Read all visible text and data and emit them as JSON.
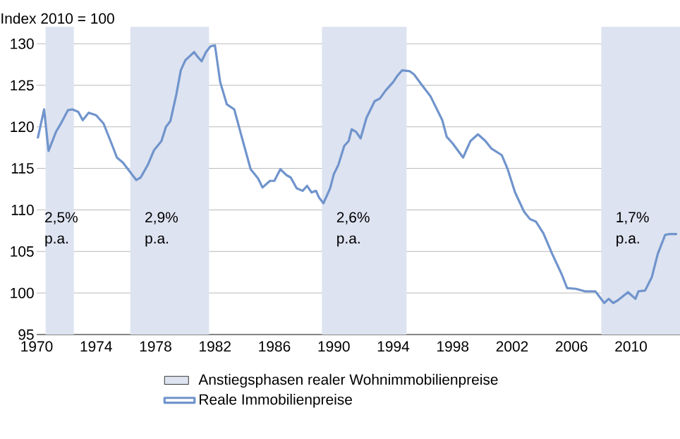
{
  "chart_data": {
    "type": "line",
    "ylabel": "Index 2010 = 100",
    "x": [
      1970.07,
      1970.5,
      1970.8,
      1971.3,
      1971.6,
      1972.1,
      1972.4,
      1972.8,
      1973.1,
      1973.5,
      1974.0,
      1974.5,
      1975.1,
      1975.4,
      1975.8,
      1976.4,
      1976.7,
      1977.0,
      1977.5,
      1977.9,
      1978.4,
      1978.7,
      1979.0,
      1979.4,
      1979.7,
      1980.0,
      1980.3,
      1980.6,
      1980.8,
      1981.1,
      1981.4,
      1981.7,
      1982.0,
      1982.35,
      1982.8,
      1983.3,
      1983.8,
      1984.4,
      1984.9,
      1985.2,
      1985.7,
      1986.0,
      1986.4,
      1986.8,
      1987.1,
      1987.5,
      1987.9,
      1988.2,
      1988.5,
      1988.8,
      1989.0,
      1989.3,
      1989.75,
      1990.0,
      1990.3,
      1990.7,
      1991.0,
      1991.2,
      1991.5,
      1991.8,
      1992.2,
      1992.75,
      1993.1,
      1993.5,
      1994.0,
      1994.3,
      1994.6,
      1995.1,
      1995.4,
      1995.9,
      1996.5,
      1997.3,
      1997.6,
      1998.0,
      1998.7,
      1999.2,
      1999.7,
      2000.2,
      2000.6,
      2001.3,
      2001.7,
      2002.2,
      2002.8,
      2003.2,
      2003.6,
      2004.1,
      2004.7,
      2005.35,
      2005.7,
      2006.3,
      2006.9,
      2007.6,
      2008.2,
      2008.5,
      2008.8,
      2009.1,
      2009.8,
      2010.3,
      2010.5,
      2010.95,
      2011.4,
      2011.8,
      2012.3,
      2012.6,
      2013.1
    ],
    "series": [
      {
        "name": "Reale Immobilienpreise",
        "color": "#7094cc",
        "values": [
          118.6,
          122.1,
          117.1,
          119.4,
          120.3,
          122.0,
          122.1,
          121.8,
          120.8,
          121.7,
          121.4,
          120.4,
          117.7,
          116.3,
          115.7,
          114.3,
          113.6,
          113.9,
          115.5,
          117.2,
          118.3,
          120.0,
          120.7,
          123.9,
          126.8,
          128.0,
          128.5,
          129.0,
          128.5,
          127.9,
          129.0,
          129.7,
          129.8,
          125.4,
          122.7,
          122.1,
          118.8,
          114.9,
          113.8,
          112.7,
          113.5,
          113.5,
          114.9,
          114.2,
          113.9,
          112.6,
          112.3,
          112.9,
          112.1,
          112.3,
          111.5,
          110.8,
          112.6,
          114.3,
          115.4,
          117.7,
          118.3,
          119.7,
          119.4,
          118.6,
          121.1,
          123.1,
          123.4,
          124.4,
          125.4,
          126.2,
          126.8,
          126.7,
          126.3,
          125.1,
          123.7,
          120.8,
          118.8,
          118.0,
          116.3,
          118.3,
          119.1,
          118.3,
          117.4,
          116.6,
          114.9,
          112.1,
          109.8,
          108.9,
          108.6,
          107.2,
          104.7,
          102.2,
          100.6,
          100.5,
          100.2,
          100.2,
          98.8,
          99.3,
          98.8,
          99.1,
          100.1,
          99.3,
          100.2,
          100.3,
          101.9,
          104.7,
          107.0,
          107.1,
          107.1
        ]
      }
    ],
    "xlim": [
      1970,
      2013.3
    ],
    "ylim": [
      95,
      130
    ],
    "xticks": [
      1970,
      1974,
      1978,
      1982,
      1986,
      1990,
      1994,
      1998,
      2002,
      2006,
      2010
    ],
    "yticks": [
      95,
      100,
      105,
      110,
      115,
      120,
      125,
      130
    ],
    "grid": "y",
    "legend": "bottom",
    "bands": [
      {
        "axis": "x",
        "from": 1970.6,
        "to": 1972.5,
        "label": "Anstiegsphasen realer Wohnimmobilienpreise",
        "color": "#dde3f0"
      },
      {
        "axis": "x",
        "from": 1976.3,
        "to": 1981.6,
        "color": "#dde3f0"
      },
      {
        "axis": "x",
        "from": 1989.2,
        "to": 1994.9,
        "color": "#dde3f0"
      },
      {
        "axis": "x",
        "from": 2008.0,
        "to": 2013.3,
        "color": "#dde3f0"
      }
    ],
    "annotations": [
      "2,5% p.a.",
      "2,9% p.a.",
      "2,6% p.a.",
      "1,7% p.a."
    ]
  }
}
